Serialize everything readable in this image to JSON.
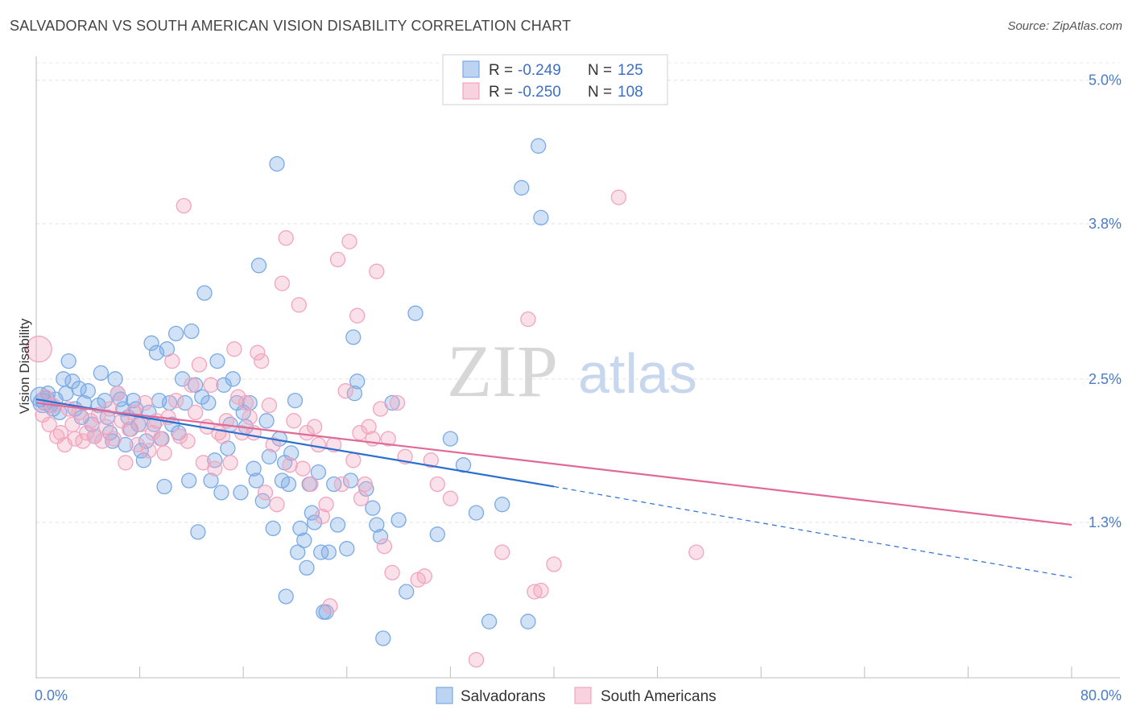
{
  "title": "SALVADORAN VS SOUTH AMERICAN VISION DISABILITY CORRELATION CHART",
  "source": "Source: ZipAtlas.com",
  "watermark": {
    "zip": "ZIP",
    "atlas": "atlas"
  },
  "legend": {
    "rows": [
      {
        "r_label": "R = ",
        "r_value": "-0.249",
        "n_label": "N = ",
        "n_value": "125",
        "color": "#7aaae6"
      },
      {
        "r_label": "R = ",
        "r_value": "-0.250",
        "n_label": "N = ",
        "n_value": "108",
        "color": "#f2a5bd"
      }
    ]
  },
  "bottom_legend": [
    {
      "label": "Salvadorans",
      "color": "#7aaae6"
    },
    {
      "label": "South Americans",
      "color": "#f2a5bd"
    }
  ],
  "chart_data": {
    "type": "scatter",
    "title": "SALVADORAN VS SOUTH AMERICAN VISION DISABILITY CORRELATION CHART",
    "xlabel": "",
    "ylabel": "Vision Disability",
    "xlim": [
      0,
      80
    ],
    "ylim": [
      0,
      5.2
    ],
    "x_tick_labels": [
      "0.0%",
      "80.0%"
    ],
    "y_ticks": [
      1.3,
      2.5,
      3.8,
      5.0
    ],
    "y_tick_labels": [
      "1.3%",
      "2.5%",
      "3.8%",
      "5.0%"
    ],
    "grid": true,
    "series": [
      {
        "name": "Salvadorans",
        "color": "#7aaae6",
        "line_color": "#2b6fd1",
        "trend": {
          "x0": 0,
          "y0": 2.33,
          "x1": 40,
          "y1": 1.6,
          "dash_x1": 80,
          "dash_y1": 0.84
        },
        "points": [
          [
            0.3,
            2.35
          ],
          [
            0.5,
            2.3
          ],
          [
            0.7,
            2.32
          ],
          [
            0.9,
            2.38
          ],
          [
            1.1,
            2.28
          ],
          [
            1.3,
            2.25
          ],
          [
            1.5,
            2.33
          ],
          [
            1.8,
            2.22
          ],
          [
            2.1,
            2.5
          ],
          [
            2.3,
            2.38
          ],
          [
            2.5,
            2.65
          ],
          [
            2.8,
            2.48
          ],
          [
            3.0,
            2.25
          ],
          [
            3.3,
            2.42
          ],
          [
            3.5,
            2.18
          ],
          [
            3.7,
            2.3
          ],
          [
            4.0,
            2.4
          ],
          [
            4.3,
            2.12
          ],
          [
            4.5,
            2.02
          ],
          [
            4.8,
            2.28
          ],
          [
            5.0,
            2.55
          ],
          [
            5.3,
            2.32
          ],
          [
            5.5,
            2.18
          ],
          [
            5.7,
            2.05
          ],
          [
            5.9,
            1.98
          ],
          [
            6.1,
            2.5
          ],
          [
            6.3,
            2.38
          ],
          [
            6.5,
            2.33
          ],
          [
            6.7,
            2.25
          ],
          [
            6.9,
            1.95
          ],
          [
            7.1,
            2.18
          ],
          [
            7.3,
            2.08
          ],
          [
            7.5,
            2.32
          ],
          [
            7.7,
            2.25
          ],
          [
            7.9,
            2.12
          ],
          [
            8.1,
            1.9
          ],
          [
            8.3,
            1.82
          ],
          [
            8.5,
            1.98
          ],
          [
            8.7,
            2.22
          ],
          [
            8.9,
            2.8
          ],
          [
            9.1,
            2.12
          ],
          [
            9.3,
            2.72
          ],
          [
            9.5,
            2.32
          ],
          [
            9.7,
            2.0
          ],
          [
            9.9,
            1.6
          ],
          [
            10.1,
            2.75
          ],
          [
            10.3,
            2.3
          ],
          [
            10.5,
            2.12
          ],
          [
            10.8,
            2.88
          ],
          [
            11.0,
            2.05
          ],
          [
            11.3,
            2.5
          ],
          [
            11.5,
            2.3
          ],
          [
            11.8,
            1.65
          ],
          [
            12.0,
            2.9
          ],
          [
            12.3,
            2.45
          ],
          [
            12.5,
            1.22
          ],
          [
            12.8,
            2.35
          ],
          [
            13.0,
            3.22
          ],
          [
            13.3,
            2.3
          ],
          [
            13.5,
            1.65
          ],
          [
            13.8,
            1.82
          ],
          [
            14.0,
            2.65
          ],
          [
            14.3,
            1.55
          ],
          [
            14.5,
            2.45
          ],
          [
            14.8,
            1.92
          ],
          [
            15.0,
            2.12
          ],
          [
            15.2,
            2.5
          ],
          [
            15.5,
            2.3
          ],
          [
            15.8,
            1.55
          ],
          [
            16.0,
            2.22
          ],
          [
            16.2,
            2.1
          ],
          [
            16.5,
            2.3
          ],
          [
            16.8,
            1.75
          ],
          [
            17.0,
            1.65
          ],
          [
            17.2,
            3.45
          ],
          [
            17.5,
            1.48
          ],
          [
            17.8,
            2.15
          ],
          [
            18.0,
            1.85
          ],
          [
            18.3,
            1.25
          ],
          [
            18.6,
            4.3
          ],
          [
            18.8,
            2.0
          ],
          [
            19.0,
            1.65
          ],
          [
            19.2,
            1.8
          ],
          [
            19.5,
            1.62
          ],
          [
            19.7,
            1.88
          ],
          [
            20.0,
            2.32
          ],
          [
            20.2,
            1.05
          ],
          [
            20.4,
            1.25
          ],
          [
            20.7,
            1.15
          ],
          [
            20.9,
            0.92
          ],
          [
            21.1,
            1.62
          ],
          [
            21.3,
            1.38
          ],
          [
            21.5,
            1.3
          ],
          [
            21.8,
            1.72
          ],
          [
            22.0,
            1.05
          ],
          [
            22.2,
            0.55
          ],
          [
            22.4,
            0.55
          ],
          [
            22.6,
            1.05
          ],
          [
            23.0,
            1.62
          ],
          [
            23.3,
            1.28
          ],
          [
            24.0,
            1.08
          ],
          [
            24.3,
            1.65
          ],
          [
            24.5,
            2.85
          ],
          [
            24.6,
            2.38
          ],
          [
            24.8,
            2.48
          ],
          [
            25.5,
            1.58
          ],
          [
            26.0,
            1.42
          ],
          [
            26.3,
            1.28
          ],
          [
            26.6,
            1.18
          ],
          [
            26.8,
            0.33
          ],
          [
            27.5,
            2.3
          ],
          [
            28.0,
            1.32
          ],
          [
            28.6,
            0.72
          ],
          [
            29.3,
            3.05
          ],
          [
            31.0,
            1.2
          ],
          [
            32.0,
            2.0
          ],
          [
            33.0,
            1.78
          ],
          [
            34.0,
            1.38
          ],
          [
            35.0,
            0.47
          ],
          [
            36.0,
            1.45
          ],
          [
            37.5,
            4.1
          ],
          [
            38.0,
            0.47
          ],
          [
            38.8,
            4.45
          ],
          [
            19.3,
            0.68
          ],
          [
            39.0,
            3.85
          ]
        ]
      },
      {
        "name": "South Americans",
        "color": "#f2a5bd",
        "line_color": "#e06a95",
        "trend": {
          "x0": 0,
          "y0": 2.3,
          "x1": 80,
          "y1": 1.28
        },
        "points": [
          [
            0.2,
            2.75
          ],
          [
            0.5,
            2.2
          ],
          [
            0.7,
            2.35
          ],
          [
            1.0,
            2.12
          ],
          [
            1.3,
            2.28
          ],
          [
            1.6,
            2.02
          ],
          [
            1.9,
            2.05
          ],
          [
            2.2,
            1.95
          ],
          [
            2.5,
            2.25
          ],
          [
            2.8,
            2.12
          ],
          [
            3.0,
            2.0
          ],
          [
            3.3,
            2.22
          ],
          [
            3.6,
            1.98
          ],
          [
            3.9,
            2.05
          ],
          [
            4.2,
            2.15
          ],
          [
            4.5,
            2.02
          ],
          [
            4.8,
            2.2
          ],
          [
            5.1,
            1.98
          ],
          [
            5.4,
            2.1
          ],
          [
            5.7,
            2.25
          ],
          [
            6.0,
            2.0
          ],
          [
            6.3,
            2.38
          ],
          [
            6.6,
            2.15
          ],
          [
            6.9,
            1.8
          ],
          [
            7.2,
            2.08
          ],
          [
            7.5,
            2.22
          ],
          [
            7.8,
            1.95
          ],
          [
            8.1,
            2.12
          ],
          [
            8.4,
            2.3
          ],
          [
            8.7,
            1.9
          ],
          [
            9.0,
            2.05
          ],
          [
            9.3,
            2.15
          ],
          [
            9.6,
            2.0
          ],
          [
            9.9,
            1.88
          ],
          [
            10.2,
            2.18
          ],
          [
            10.5,
            2.65
          ],
          [
            10.8,
            2.32
          ],
          [
            11.1,
            2.02
          ],
          [
            11.4,
            3.95
          ],
          [
            11.7,
            1.98
          ],
          [
            12.0,
            2.45
          ],
          [
            12.3,
            2.22
          ],
          [
            12.6,
            2.62
          ],
          [
            12.9,
            1.8
          ],
          [
            13.2,
            2.1
          ],
          [
            13.5,
            2.45
          ],
          [
            13.8,
            1.75
          ],
          [
            14.1,
            2.05
          ],
          [
            14.4,
            2.02
          ],
          [
            14.7,
            2.15
          ],
          [
            15.0,
            1.8
          ],
          [
            15.3,
            2.75
          ],
          [
            15.6,
            2.35
          ],
          [
            15.9,
            2.05
          ],
          [
            16.2,
            2.3
          ],
          [
            16.5,
            2.18
          ],
          [
            16.8,
            2.05
          ],
          [
            17.1,
            2.72
          ],
          [
            17.4,
            2.65
          ],
          [
            17.7,
            1.55
          ],
          [
            18.0,
            2.28
          ],
          [
            18.3,
            1.95
          ],
          [
            18.6,
            1.45
          ],
          [
            19.0,
            3.3
          ],
          [
            19.3,
            3.68
          ],
          [
            19.6,
            1.78
          ],
          [
            19.9,
            2.15
          ],
          [
            20.3,
            3.12
          ],
          [
            20.6,
            1.75
          ],
          [
            20.9,
            2.05
          ],
          [
            21.2,
            1.62
          ],
          [
            21.5,
            2.1
          ],
          [
            21.8,
            1.95
          ],
          [
            22.1,
            1.35
          ],
          [
            22.4,
            1.45
          ],
          [
            22.7,
            0.6
          ],
          [
            23.0,
            1.95
          ],
          [
            23.3,
            3.5
          ],
          [
            23.6,
            1.62
          ],
          [
            23.9,
            2.4
          ],
          [
            24.2,
            3.65
          ],
          [
            24.5,
            1.82
          ],
          [
            24.8,
            3.03
          ],
          [
            25.1,
            1.5
          ],
          [
            25.4,
            1.62
          ],
          [
            25.7,
            2.1
          ],
          [
            26.0,
            2.0
          ],
          [
            26.3,
            3.4
          ],
          [
            26.6,
            2.25
          ],
          [
            26.9,
            1.1
          ],
          [
            27.2,
            2.0
          ],
          [
            27.5,
            0.88
          ],
          [
            27.9,
            2.3
          ],
          [
            28.5,
            1.85
          ],
          [
            29.5,
            0.82
          ],
          [
            30.0,
            0.85
          ],
          [
            31.0,
            1.62
          ],
          [
            32.0,
            1.5
          ],
          [
            34.0,
            0.15
          ],
          [
            36.0,
            1.05
          ],
          [
            40.0,
            0.95
          ],
          [
            45.0,
            4.02
          ],
          [
            51.0,
            1.05
          ],
          [
            39.0,
            0.73
          ],
          [
            38.5,
            0.72
          ],
          [
            25.0,
            2.05
          ],
          [
            30.5,
            1.82
          ],
          [
            38.0,
            3.0
          ]
        ]
      }
    ]
  }
}
